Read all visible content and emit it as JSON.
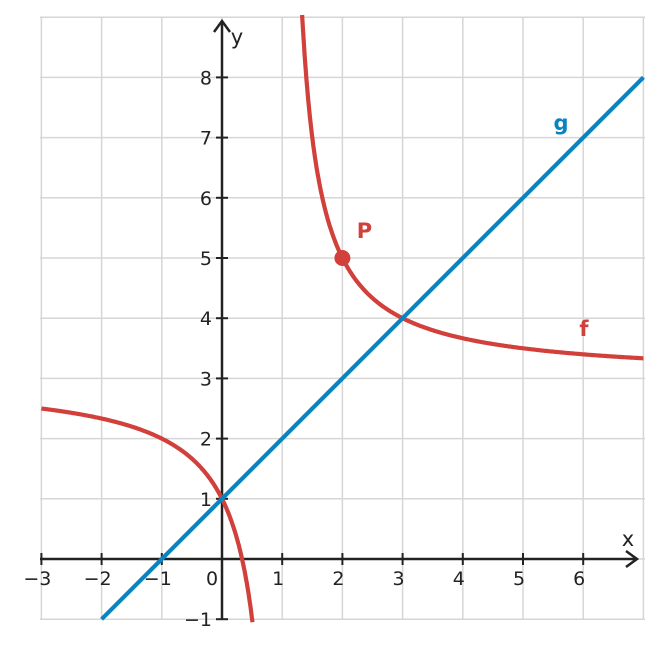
{
  "chart_data": {
    "type": "line",
    "title": "",
    "xlabel": "x",
    "ylabel": "y",
    "xlim": [
      -3,
      7
    ],
    "ylim": [
      -1,
      9
    ],
    "grid": true,
    "x_ticks": [
      -3,
      -2,
      -1,
      0,
      1,
      2,
      3,
      4,
      5,
      6
    ],
    "y_ticks": [
      -1,
      1,
      2,
      3,
      4,
      5,
      6,
      7,
      8
    ],
    "x_tick_labels": [
      "−3",
      "−2",
      "−1",
      "0",
      "1",
      "2",
      "3",
      "4",
      "5",
      "6"
    ],
    "y_tick_labels": [
      "−1",
      "1",
      "2",
      "3",
      "4",
      "5",
      "6",
      "7",
      "8"
    ],
    "series": [
      {
        "name": "f",
        "color": "#d1403b",
        "kind": "hyperbola",
        "vertical_asymptote": 1,
        "horizontal_asymptote": 3,
        "numerator": 2,
        "sample_points": [
          {
            "x": -3,
            "y": 2.5
          },
          {
            "x": -1,
            "y": 2
          },
          {
            "x": 0,
            "y": 1
          },
          {
            "x": 2,
            "y": 5
          },
          {
            "x": 3,
            "y": 4
          },
          {
            "x": 7,
            "y": 3.33
          }
        ]
      },
      {
        "name": "g",
        "color": "#0a84c1",
        "kind": "line",
        "slope": 1,
        "intercept": 1,
        "sample_points": [
          {
            "x": -2,
            "y": -1
          },
          {
            "x": 7,
            "y": 8
          }
        ]
      }
    ],
    "points": [
      {
        "name": "P",
        "x": 2,
        "y": 5,
        "color": "#d1403b"
      }
    ],
    "zero_label": "0"
  }
}
